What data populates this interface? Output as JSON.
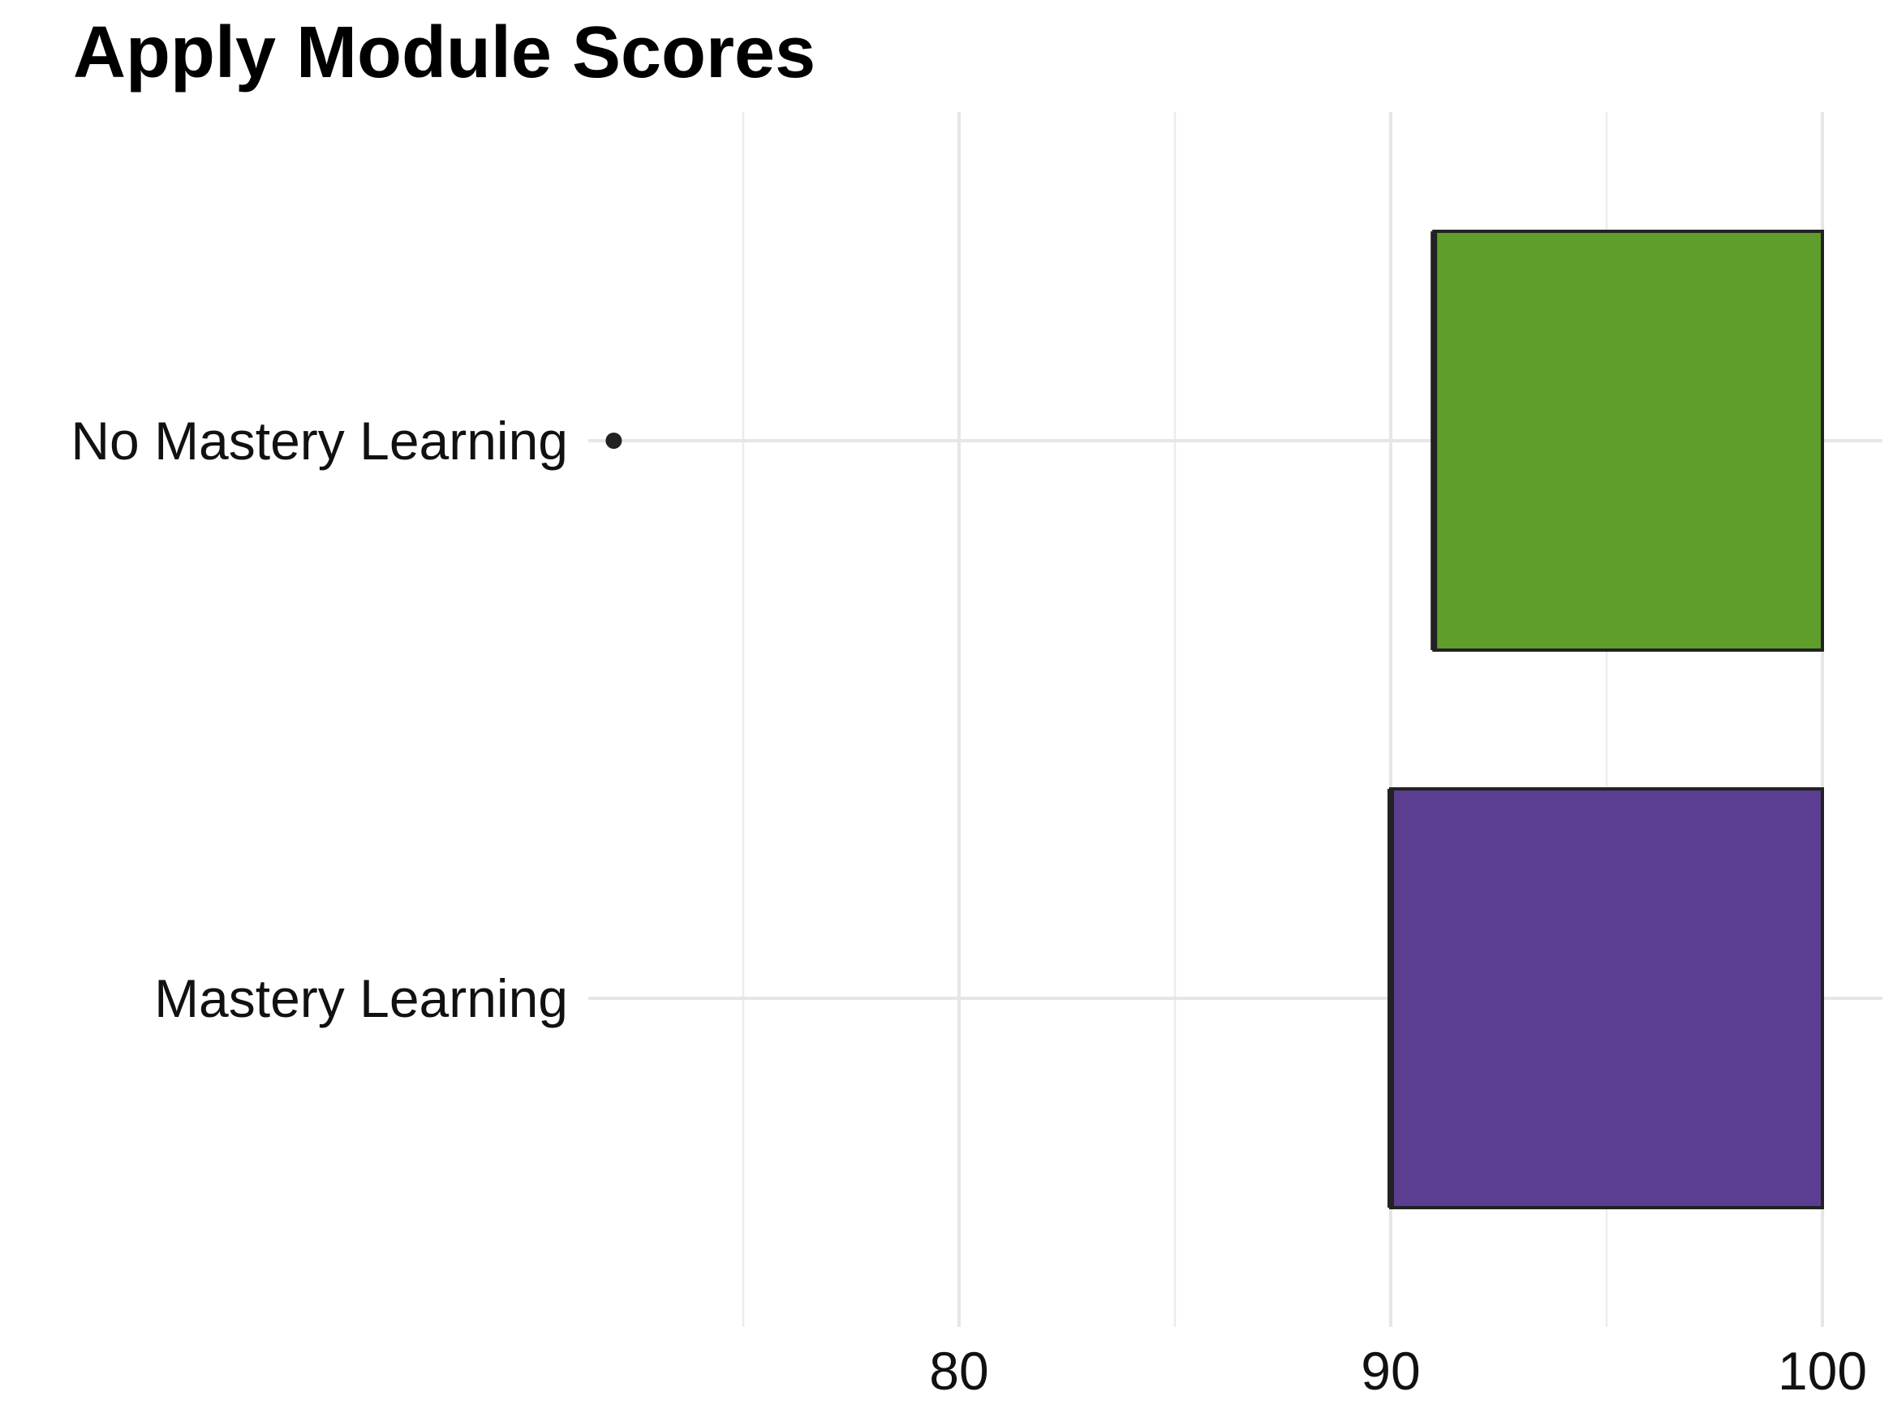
{
  "chart_data": {
    "type": "boxplot",
    "title": "Apply Module Scores",
    "xlabel": "",
    "ylabel": "",
    "orientation": "horizontal",
    "xlim": [
      67,
      100.8
    ],
    "x_ticks": [
      80,
      90,
      100
    ],
    "x_tick_labels": [
      "80",
      "90",
      "100"
    ],
    "grid": true,
    "legend": "none",
    "categories": [
      "No Mastery Learning",
      "Mastery Learning"
    ],
    "series": [
      {
        "category": "No Mastery Learning",
        "min": 91,
        "q1": 91,
        "median": 91,
        "q3": 100,
        "max": 100,
        "outliers": [
          72
        ],
        "color": "#5f9e2b"
      },
      {
        "category": "Mastery Learning",
        "min": 90,
        "q1": 90,
        "median": 90,
        "q3": 100,
        "max": 100,
        "outliers": [],
        "color": "#5b3d91"
      }
    ]
  }
}
